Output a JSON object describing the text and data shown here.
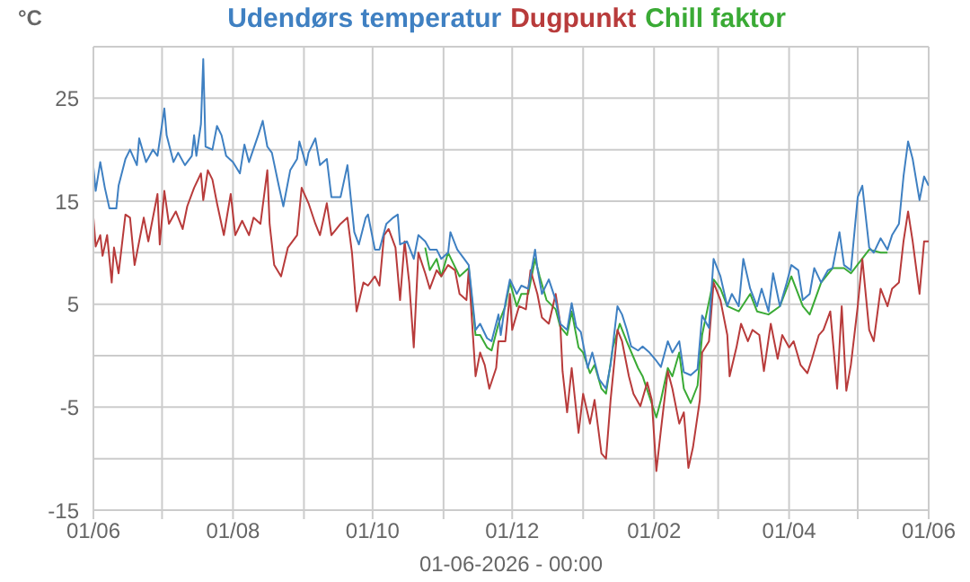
{
  "chart_data": {
    "type": "line",
    "ylabel": "°C",
    "xlabel": "01-06-2026 - 00:00",
    "legend": "top",
    "grid": true,
    "marker": "none",
    "line_style": "solid",
    "xlim": [
      "2025-06-01",
      "2026-06-01"
    ],
    "xticks": [
      {
        "value": "2025-06-01",
        "label": "01/06"
      },
      {
        "value": "2025-07-01",
        "label": null
      },
      {
        "value": "2025-08-01",
        "label": "01/08"
      },
      {
        "value": "2025-09-01",
        "label": null
      },
      {
        "value": "2025-10-01",
        "label": "01/10"
      },
      {
        "value": "2025-11-01",
        "label": null
      },
      {
        "value": "2025-12-01",
        "label": "01/12"
      },
      {
        "value": "2026-01-01",
        "label": null
      },
      {
        "value": "2026-02-01",
        "label": "01/02"
      },
      {
        "value": "2026-03-01",
        "label": null
      },
      {
        "value": "2026-04-01",
        "label": "01/04"
      },
      {
        "value": "2026-05-01",
        "label": null
      },
      {
        "value": "2026-06-01",
        "label": "01/06"
      }
    ],
    "ylim": [
      -15,
      30
    ],
    "yticks": [
      -15,
      {
        "value": -10,
        "label": null
      },
      -5,
      {
        "value": 0,
        "label": null
      },
      5,
      {
        "value": 10,
        "label": null
      },
      15,
      {
        "value": 20,
        "label": null
      },
      25,
      {
        "value": 30,
        "label": null
      }
    ],
    "series": [
      {
        "name": "Udendørs temperatur",
        "color": "#3f80c2",
        "x": [
          "2025-06-01",
          "2025-06-02",
          "2025-06-04",
          "2025-06-06",
          "2025-06-08",
          "2025-06-11",
          "2025-06-12",
          "2025-06-15",
          "2025-06-17",
          "2025-06-20",
          "2025-06-21",
          "2025-06-24",
          "2025-06-27",
          "2025-06-29",
          "2025-07-02",
          "2025-07-03",
          "2025-07-06",
          "2025-07-08",
          "2025-07-11",
          "2025-07-14",
          "2025-07-15",
          "2025-07-16",
          "2025-07-18",
          "2025-07-19",
          "2025-07-20",
          "2025-07-23",
          "2025-07-25",
          "2025-07-27",
          "2025-07-29",
          "2025-08-01",
          "2025-08-04",
          "2025-08-06",
          "2025-08-08",
          "2025-08-12",
          "2025-08-14",
          "2025-08-16",
          "2025-08-18",
          "2025-08-21",
          "2025-08-23",
          "2025-08-26",
          "2025-08-29",
          "2025-08-30",
          "2025-09-02",
          "2025-09-03",
          "2025-09-06",
          "2025-09-08",
          "2025-09-11",
          "2025-09-13",
          "2025-09-17",
          "2025-09-20",
          "2025-09-23",
          "2025-09-25",
          "2025-09-28",
          "2025-09-29",
          "2025-10-02",
          "2025-10-04",
          "2025-10-07",
          "2025-10-10",
          "2025-10-12",
          "2025-10-13",
          "2025-10-16",
          "2025-10-19",
          "2025-10-21",
          "2025-10-24",
          "2025-10-26",
          "2025-10-29",
          "2025-10-31",
          "2025-11-03",
          "2025-11-04",
          "2025-11-07",
          "2025-11-10",
          "2025-11-12",
          "2025-11-15",
          "2025-11-17",
          "2025-11-20",
          "2025-11-22",
          "2025-11-25",
          "2025-11-26",
          "2025-11-28",
          "2025-11-30",
          "2025-12-03",
          "2025-12-05",
          "2025-12-08",
          "2025-12-11",
          "2025-12-12",
          "2025-12-14",
          "2025-12-17",
          "2025-12-20",
          "2025-12-22",
          "2025-12-25",
          "2025-12-27",
          "2025-12-29",
          "2025-12-31",
          "2026-01-03",
          "2026-01-05",
          "2026-01-08",
          "2026-01-11",
          "2026-01-13",
          "2026-01-16",
          "2026-01-18",
          "2026-01-20",
          "2026-01-22",
          "2026-01-25",
          "2026-01-27",
          "2026-01-30",
          "2026-02-02",
          "2026-02-04",
          "2026-02-07",
          "2026-02-09",
          "2026-02-12",
          "2026-02-14",
          "2026-02-17",
          "2026-02-20",
          "2026-02-22",
          "2026-02-25",
          "2026-02-27",
          "2026-03-02",
          "2026-03-05",
          "2026-03-07",
          "2026-03-10",
          "2026-03-12",
          "2026-03-15",
          "2026-03-18",
          "2026-03-20",
          "2026-03-23",
          "2026-03-25",
          "2026-03-28",
          "2026-03-31",
          "2026-04-02",
          "2026-04-05",
          "2026-04-07",
          "2026-04-10",
          "2026-04-12",
          "2026-04-15",
          "2026-04-18",
          "2026-04-20",
          "2026-04-23",
          "2026-04-25",
          "2026-04-28",
          "2026-05-01",
          "2026-05-03",
          "2026-05-06",
          "2026-05-08",
          "2026-05-11",
          "2026-05-14",
          "2026-05-16",
          "2026-05-19",
          "2026-05-21",
          "2026-05-23",
          "2026-05-25",
          "2026-05-28",
          "2026-05-30",
          "2026-06-01"
        ],
        "values": [
          18.3,
          16,
          18.8,
          16.3,
          14.3,
          14.3,
          16.5,
          19.1,
          20,
          18.5,
          21.1,
          18.8,
          20,
          19.4,
          24,
          21.4,
          18.8,
          19.7,
          18.5,
          19.4,
          21.4,
          19.4,
          22.5,
          28.8,
          20.3,
          20,
          22.3,
          21.4,
          19.4,
          18.8,
          17.7,
          20.5,
          18.8,
          21.4,
          22.8,
          20.3,
          19.7,
          16.5,
          14.5,
          18,
          19.1,
          20.8,
          18.5,
          19.7,
          21.1,
          18.5,
          19.1,
          15.4,
          15.4,
          18.5,
          12,
          10.8,
          13.4,
          13.7,
          10.3,
          10.3,
          12.8,
          13.4,
          13.7,
          10.8,
          11.1,
          9.4,
          11.7,
          11.1,
          10.3,
          10.3,
          9.4,
          10,
          12,
          10.3,
          9.4,
          8.8,
          2.5,
          3.1,
          1.7,
          1.4,
          4,
          2,
          5.1,
          7.4,
          6,
          6.8,
          6.5,
          10.3,
          8.5,
          6,
          7.4,
          5.4,
          3.1,
          2.5,
          5.1,
          2.8,
          2.3,
          -1.2,
          0.3,
          -2.3,
          -3.2,
          -0.9,
          4.8,
          4,
          2.6,
          0.9,
          0.5,
          0.9,
          0.3,
          -0.5,
          -1.1,
          1.4,
          0.3,
          1.4,
          -1.6,
          -1.9,
          -1.3,
          3.9,
          2.7,
          9.4,
          7.7,
          4.8,
          6,
          4.8,
          9.4,
          6.5,
          4.8,
          6.5,
          4.3,
          8,
          4.8,
          7.1,
          8.8,
          8.3,
          5.4,
          6,
          8.5,
          7.1,
          8.3,
          8.5,
          12,
          8.8,
          8.3,
          15.4,
          16.5,
          10.5,
          10,
          11.4,
          10.3,
          11.7,
          12.8,
          17.4,
          20.8,
          19.1,
          15.1,
          17.4,
          16.5
        ]
      },
      {
        "name": "Dugpunkt",
        "color": "#b83b3b",
        "x": [
          "2025-06-01",
          "2025-06-02",
          "2025-06-04",
          "2025-06-05",
          "2025-06-07",
          "2025-06-09",
          "2025-06-10",
          "2025-06-12",
          "2025-06-15",
          "2025-06-17",
          "2025-06-19",
          "2025-06-21",
          "2025-06-23",
          "2025-06-25",
          "2025-06-29",
          "2025-06-30",
          "2025-07-02",
          "2025-07-04",
          "2025-07-07",
          "2025-07-10",
          "2025-07-12",
          "2025-07-15",
          "2025-07-18",
          "2025-07-19",
          "2025-07-21",
          "2025-07-23",
          "2025-07-25",
          "2025-07-28",
          "2025-07-31",
          "2025-08-02",
          "2025-08-05",
          "2025-08-08",
          "2025-08-10",
          "2025-08-13",
          "2025-08-16",
          "2025-08-17",
          "2025-08-19",
          "2025-08-22",
          "2025-08-25",
          "2025-08-29",
          "2025-08-31",
          "2025-09-03",
          "2025-09-06",
          "2025-09-08",
          "2025-09-11",
          "2025-09-13",
          "2025-09-17",
          "2025-09-20",
          "2025-09-22",
          "2025-09-24",
          "2025-09-27",
          "2025-09-29",
          "2025-10-02",
          "2025-10-04",
          "2025-10-06",
          "2025-10-08",
          "2025-10-11",
          "2025-10-13",
          "2025-10-15",
          "2025-10-17",
          "2025-10-19",
          "2025-10-21",
          "2025-10-24",
          "2025-10-26",
          "2025-10-29",
          "2025-10-31",
          "2025-11-03",
          "2025-11-06",
          "2025-11-08",
          "2025-11-11",
          "2025-11-12",
          "2025-11-15",
          "2025-11-17",
          "2025-11-19",
          "2025-11-21",
          "2025-11-24",
          "2025-11-25",
          "2025-11-28",
          "2025-11-30",
          "2025-12-01",
          "2025-12-04",
          "2025-12-07",
          "2025-12-09",
          "2025-12-12",
          "2025-12-14",
          "2025-12-17",
          "2025-12-20",
          "2025-12-22",
          "2025-12-23",
          "2025-12-25",
          "2025-12-27",
          "2025-12-30",
          "2026-01-01",
          "2026-01-04",
          "2026-01-06",
          "2026-01-09",
          "2026-01-11",
          "2026-01-13",
          "2026-01-16",
          "2026-01-18",
          "2026-01-21",
          "2026-01-23",
          "2026-01-26",
          "2026-01-29",
          "2026-01-31",
          "2026-02-02",
          "2026-02-04",
          "2026-02-07",
          "2026-02-09",
          "2026-02-12",
          "2026-02-14",
          "2026-02-16",
          "2026-02-18",
          "2026-02-21",
          "2026-02-22",
          "2026-02-25",
          "2026-02-27",
          "2026-03-02",
          "2026-03-05",
          "2026-03-06",
          "2026-03-09",
          "2026-03-11",
          "2026-03-14",
          "2026-03-16",
          "2026-03-19",
          "2026-03-21",
          "2026-03-24",
          "2026-03-27",
          "2026-03-29",
          "2026-04-01",
          "2026-04-03",
          "2026-04-06",
          "2026-04-09",
          "2026-04-11",
          "2026-04-14",
          "2026-04-16",
          "2026-04-19",
          "2026-04-22",
          "2026-04-24",
          "2026-04-26",
          "2026-04-28",
          "2026-05-01",
          "2026-05-03",
          "2026-05-06",
          "2026-05-08",
          "2026-05-11",
          "2026-05-14",
          "2026-05-16",
          "2026-05-19",
          "2026-05-21",
          "2026-05-23",
          "2026-05-25",
          "2026-05-28",
          "2026-05-30",
          "2026-06-01"
        ],
        "values": [
          13.4,
          10.6,
          11.7,
          9.7,
          11.7,
          7.1,
          10.5,
          8,
          13.7,
          13.4,
          8.8,
          11.1,
          13.4,
          11.1,
          15.7,
          10.8,
          16,
          12.8,
          14,
          12.3,
          14.5,
          16.3,
          17.7,
          15.1,
          18,
          17.1,
          14.8,
          11.7,
          15.7,
          11.7,
          13.1,
          11.7,
          13.4,
          12.8,
          18,
          12.8,
          8.8,
          7.7,
          10.5,
          11.7,
          16.3,
          14.8,
          12.8,
          11.7,
          14.8,
          11.7,
          12.8,
          13.4,
          10,
          4.3,
          7.1,
          6.8,
          7.7,
          6.8,
          11.7,
          12.3,
          10.5,
          5.4,
          11.1,
          7.1,
          0.8,
          10,
          8,
          6.5,
          8.3,
          7.7,
          8.8,
          8.3,
          6,
          5.4,
          8.3,
          -2,
          0.3,
          -0.9,
          -3.2,
          -1.2,
          1.4,
          1.4,
          6,
          2.5,
          4.8,
          4.5,
          8.3,
          6,
          3.7,
          3.1,
          6,
          3.1,
          -1.5,
          -5.5,
          -1.2,
          -7.5,
          -3.7,
          -6.6,
          -4.3,
          -9.5,
          -10,
          -4.3,
          2.5,
          1.4,
          -2,
          -3.7,
          -4.9,
          -2.6,
          -4.3,
          -11.2,
          -7.2,
          -1.5,
          -3.2,
          -6.6,
          -5.5,
          -10.9,
          -8.9,
          -4.3,
          0.3,
          1.4,
          7.1,
          5.4,
          2,
          -2,
          0.8,
          3.1,
          1.4,
          2.5,
          2,
          -1.5,
          3.1,
          -0.3,
          2,
          0.8,
          1.4,
          -0.9,
          -1.7,
          -0.3,
          2,
          2.5,
          4.3,
          -3.2,
          4.8,
          -3.4,
          -0.9,
          4.8,
          9.4,
          2.5,
          1.4,
          6.5,
          4.8,
          6.5,
          7.1,
          11.1,
          14,
          11.1,
          6,
          11.1,
          11.1
        ]
      },
      {
        "name": "Chill faktor",
        "color": "#3aaa35",
        "x": [
          "2025-10-24",
          "2025-10-26",
          "2025-10-29",
          "2025-10-31",
          "2025-11-03",
          "2025-11-08",
          "2025-11-12",
          "2025-11-15",
          "2025-11-17",
          "2025-11-20",
          "2025-11-22",
          "2025-11-25",
          "2025-11-28",
          "2025-11-30",
          "2025-12-03",
          "2025-12-05",
          "2025-12-08",
          "2025-12-11",
          "2025-12-13",
          "2025-12-16",
          "2025-12-20",
          "2025-12-22",
          "2025-12-25",
          "2025-12-27",
          "2025-12-30",
          "2026-01-01",
          "2026-01-04",
          "2026-01-06",
          "2026-01-09",
          "2026-01-11",
          "2026-01-14",
          "2026-01-17",
          "2026-01-20",
          "2026-01-25",
          "2026-01-27",
          "2026-02-02",
          "2026-02-04",
          "2026-02-07",
          "2026-02-09",
          "2026-02-12",
          "2026-02-14",
          "2026-02-17",
          "2026-02-20",
          "2026-02-22",
          "2026-02-27",
          "2026-03-02",
          "2026-03-05",
          "2026-03-10",
          "2026-03-15",
          "2026-03-18",
          "2026-03-23",
          "2026-03-28",
          "2026-04-02",
          "2026-04-07",
          "2026-04-10",
          "2026-04-15",
          "2026-04-20",
          "2026-04-25",
          "2026-04-28",
          "2026-05-06",
          "2026-05-11",
          "2026-05-14"
        ],
        "values": [
          10.5,
          8.3,
          9.4,
          7.7,
          10,
          7.7,
          8.5,
          2,
          2,
          0.8,
          0.5,
          3.1,
          4.8,
          7.1,
          4.8,
          6,
          6,
          9.4,
          7.7,
          5.4,
          4.5,
          2.8,
          2,
          4.3,
          0.8,
          0.3,
          -1.7,
          -0.9,
          -3.2,
          -3.7,
          0.8,
          3.1,
          1.4,
          -1.2,
          -2,
          -6,
          -4.3,
          -1.2,
          -2,
          0.3,
          -3.2,
          -4.6,
          -2.9,
          2,
          7.4,
          6.5,
          4.8,
          4.3,
          6,
          4.3,
          4,
          4.8,
          7.7,
          4.8,
          4,
          7.1,
          8.5,
          8.5,
          8,
          10.3,
          10,
          10
        ]
      }
    ]
  }
}
